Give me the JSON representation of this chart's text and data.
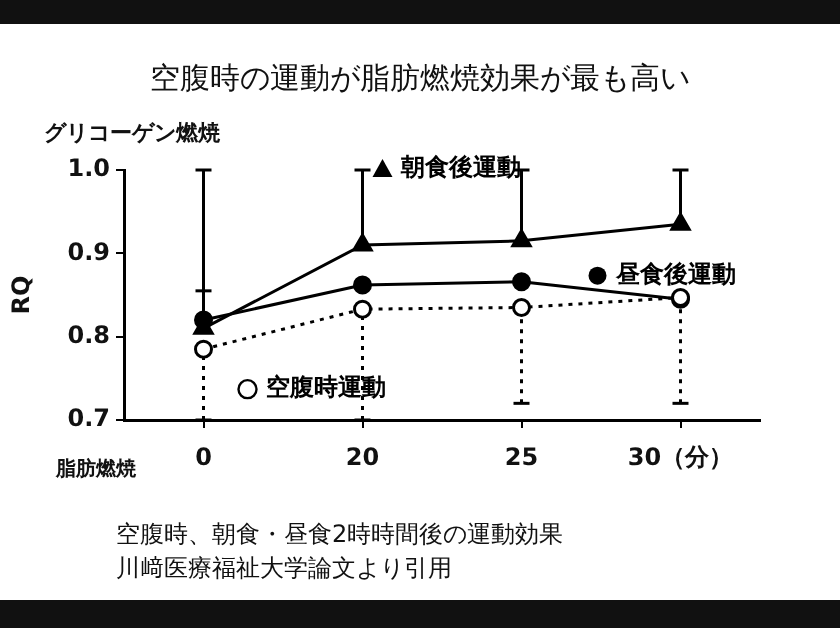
{
  "chart_data": {
    "type": "line",
    "title": "空腹時の運動が脂肪燃焼効果が最も高い",
    "ylabel": "RQ",
    "categories": [
      "0",
      "20",
      "25",
      "30（分）"
    ],
    "ylim": [
      0.7,
      1.0
    ],
    "yticks": [
      {
        "value": 0.7,
        "label": "0.7"
      },
      {
        "value": 0.8,
        "label": "0.8"
      },
      {
        "value": 0.9,
        "label": "0.9"
      },
      {
        "value": 1.0,
        "label": "1.0"
      }
    ],
    "grid": false,
    "legend": "right",
    "series": [
      {
        "name": "朝食後運動",
        "color": "#000000",
        "marker": "triangle",
        "line_style": "solid",
        "values": [
          0.81,
          0.91,
          0.915,
          0.935
        ],
        "errors": [
          [
            0.81,
            1.0
          ],
          [
            0.91,
            1.0
          ],
          [
            0.915,
            1.0
          ],
          [
            0.935,
            1.0
          ]
        ]
      },
      {
        "name": "昼食後運動",
        "color": "#000000",
        "marker": "circle",
        "line_style": "solid",
        "values": [
          0.82,
          0.862,
          0.866,
          0.845
        ],
        "errors": [
          [
            0.82,
            0.855
          ],
          null,
          null,
          null
        ]
      },
      {
        "name": "空腹時運動",
        "color": "#000000",
        "marker": "circle",
        "line_style": "dotted",
        "values": [
          0.785,
          0.833,
          0.835,
          0.847
        ],
        "errors": [
          [
            0.7,
            0.785
          ],
          [
            0.7,
            0.833
          ],
          [
            0.72,
            0.835
          ],
          [
            0.72,
            0.847
          ]
        ]
      }
    ],
    "annotations": [
      "グリコーゲン燃焼",
      "脂肪燃焼",
      "空腹時、朝食・昼食2時時間後の運動効果",
      "川﨑医療福祉大学論文より引用"
    ]
  }
}
